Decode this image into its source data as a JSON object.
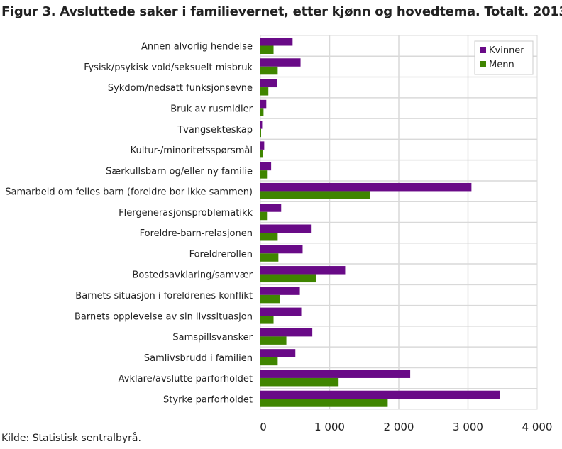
{
  "chart_data": {
    "type": "bar",
    "orientation": "horizontal",
    "title": "Figur 3. Avsluttede saker i familievernet, etter kjønn og hovedtema. Totalt. 2013",
    "source": "Kilde: Statistisk sentralbyrå.",
    "categories": [
      "Annen alvorlig hendelse",
      "Fysisk/psykisk vold/seksuelt misbruk",
      "Sykdom/nedsatt funksjonsevne",
      "Bruk av rusmidler",
      "Tvangsekteskap",
      "Kultur-/minoritetsspørsmål",
      "Særkullsbarn og/eller ny familie",
      "Samarbeid om felles barn (foreldre bor ikke sammen)",
      "Flergenerasjonsproblematikk",
      "Foreldre-barn-relasjonen",
      "Foreldrerollen",
      "Bostedsavklaring/samvær",
      "Barnets situasjon i foreldrenes konflikt",
      "Barnets opplevelse av sin livssituasjon",
      "Samspillsvansker",
      "Samlivsbrudd i familien",
      "Avklare/avslutte parforholdet",
      "Styrke parforholdet"
    ],
    "series": [
      {
        "name": "Kvinner",
        "color": "#690a87",
        "values": [
          465,
          580,
          240,
          85,
          25,
          55,
          155,
          3050,
          300,
          730,
          610,
          1225,
          570,
          590,
          750,
          505,
          2165,
          3460
        ]
      },
      {
        "name": "Menn",
        "color": "#3f8500",
        "values": [
          190,
          250,
          115,
          45,
          10,
          35,
          95,
          1585,
          95,
          250,
          260,
          805,
          280,
          190,
          375,
          250,
          1130,
          1840
        ]
      }
    ],
    "xlim": [
      0,
      4000
    ],
    "xticks": [
      0,
      1000,
      2000,
      3000,
      4000
    ],
    "xtick_labels": [
      "0",
      "1 000",
      "2 000",
      "3 000",
      "4 000"
    ],
    "grid": true,
    "legend": "top-right"
  }
}
